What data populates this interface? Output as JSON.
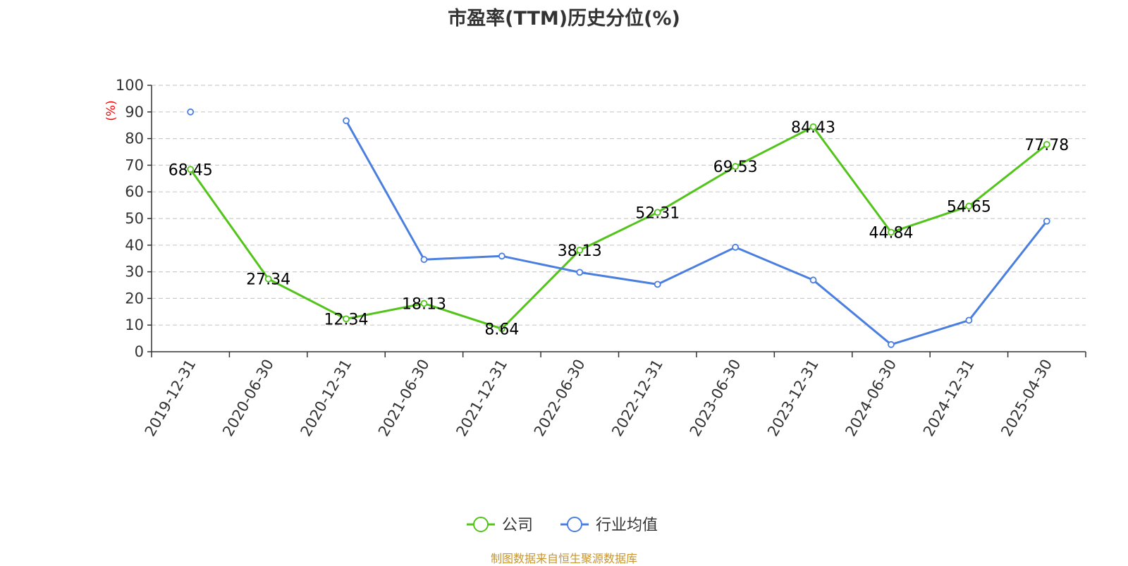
{
  "chart_data": {
    "type": "line",
    "title": "市盈率(TTM)历史分位(%)",
    "ylabel": "(%)",
    "xlabel": "",
    "ylim": [
      0,
      100
    ],
    "yticks": [
      0,
      10,
      20,
      30,
      40,
      50,
      60,
      70,
      80,
      90,
      100
    ],
    "categories": [
      "2019-12-31",
      "2020-06-30",
      "2020-12-31",
      "2021-06-30",
      "2021-12-31",
      "2022-06-30",
      "2022-12-31",
      "2023-06-30",
      "2023-12-31",
      "2024-06-30",
      "2024-12-31",
      "2025-04-30"
    ],
    "grid": true,
    "legend_position": "bottom",
    "series": [
      {
        "name": "公司",
        "color": "#52c41a",
        "values": [
          68.45,
          27.34,
          12.34,
          18.13,
          8.64,
          38.13,
          52.31,
          69.53,
          84.43,
          44.84,
          54.65,
          77.78
        ],
        "labels": [
          "68.45",
          "27.34",
          "12.34",
          "18.13",
          "8.64",
          "38.13",
          "52.31",
          "69.53",
          "84.43",
          "44.84",
          "54.65",
          "77.78"
        ]
      },
      {
        "name": "行业均值",
        "color": "#4a7fe0",
        "values": [
          90.0,
          null,
          86.7,
          34.6,
          35.9,
          29.8,
          25.3,
          39.2,
          26.9,
          2.7,
          11.8,
          49.0
        ]
      }
    ],
    "source": "制图数据来自恒生聚源数据库",
    "source_color": "#c8962e",
    "ylabel_color": "#ff0000",
    "axis_color": "#333333",
    "grid_color": "#cccccc"
  }
}
